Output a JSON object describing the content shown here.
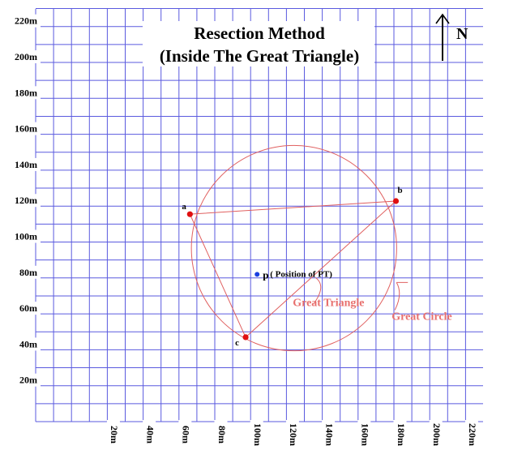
{
  "title": {
    "line1": "Resection Method",
    "line2": "(Inside The Great Triangle)"
  },
  "north_label": "N",
  "y_ticks": [
    {
      "label": "220m",
      "value": 220
    },
    {
      "label": "200m",
      "value": 200
    },
    {
      "label": "180m",
      "value": 180
    },
    {
      "label": "160m",
      "value": 160
    },
    {
      "label": "140m",
      "value": 140
    },
    {
      "label": "120m",
      "value": 120
    },
    {
      "label": "100m",
      "value": 100
    },
    {
      "label": "80m",
      "value": 80
    },
    {
      "label": "60m",
      "value": 60
    },
    {
      "label": "40m",
      "value": 40
    },
    {
      "label": "20m",
      "value": 20
    }
  ],
  "x_ticks": [
    {
      "label": "20m",
      "value": 20
    },
    {
      "label": "40m",
      "value": 40
    },
    {
      "label": "60m",
      "value": 60
    },
    {
      "label": "80m",
      "value": 80
    },
    {
      "label": "100m",
      "value": 100
    },
    {
      "label": "120m",
      "value": 120
    },
    {
      "label": "140m",
      "value": 140
    },
    {
      "label": "160m",
      "value": 160
    },
    {
      "label": "180m",
      "value": 180
    },
    {
      "label": "200m",
      "value": 200
    },
    {
      "label": "220m",
      "value": 220
    }
  ],
  "stations": [
    {
      "id": "a",
      "label": "a",
      "x": 74.5,
      "y": 115.5,
      "color": "#e01010"
    },
    {
      "id": "b",
      "label": "b",
      "x": 189.5,
      "y": 122.8,
      "color": "#e01010"
    },
    {
      "id": "c",
      "label": "c",
      "x": 105.6,
      "y": 47.0,
      "color": "#e01010"
    }
  ],
  "position_point": {
    "x": 112.0,
    "y": 82.0,
    "symbol": "p",
    "note": "( Position of  PT)",
    "color": "#1a3fe0"
  },
  "great_circle": {
    "label": "Great Circle",
    "center_x": 132.6,
    "center_y": 96.6,
    "radius": 57.3
  },
  "great_triangle": {
    "label": "Great Triangle"
  },
  "colors": {
    "grid": "#5a5adf",
    "construction": "#e06060",
    "station": "#e01010",
    "point": "#1a3fe0",
    "label_red": "#e8706e",
    "text": "#000000"
  }
}
